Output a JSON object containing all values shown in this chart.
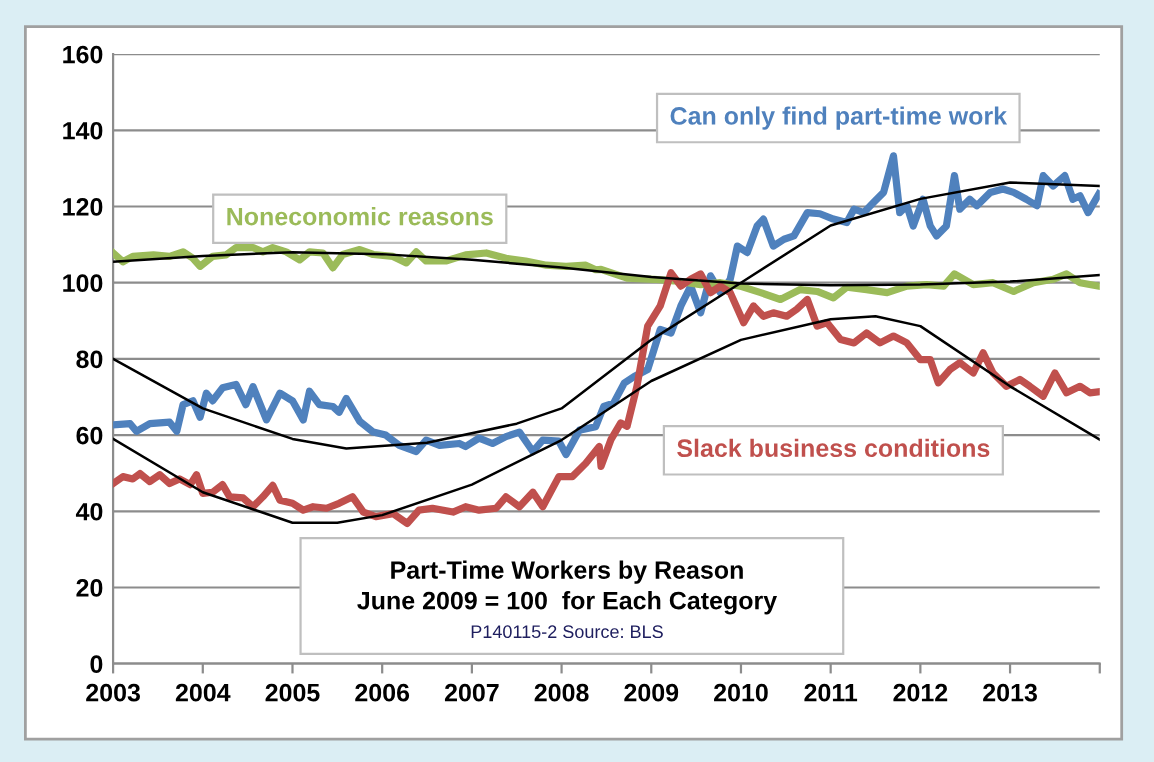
{
  "chart_data": {
    "type": "line",
    "title": "Part-Time Workers by Reason",
    "subtitle": "June 2009 = 100  for Each Category",
    "annotations": [
      "P140115-2 Source: BLS"
    ],
    "xlim": [
      2003,
      2014
    ],
    "xticks": [
      2003,
      2004,
      2005,
      2006,
      2007,
      2008,
      2009,
      2010,
      2011,
      2012,
      2013,
      {
        "value": 2014,
        "label": null
      }
    ],
    "ylim": [
      0,
      160
    ],
    "yticks": [
      0,
      20,
      40,
      60,
      80,
      100,
      120,
      140,
      160
    ],
    "grid": "y",
    "legend": false,
    "series": [
      {
        "name": "Can only find part-time work",
        "color": "#4f81bd",
        "x": [
          2003.0,
          2003.19,
          2003.26,
          2003.41,
          2003.63,
          2003.71,
          2003.78,
          2003.89,
          2003.97,
          2004.04,
          2004.11,
          2004.22,
          2004.37,
          2004.48,
          2004.56,
          2004.71,
          2004.86,
          2005.0,
          2005.12,
          2005.19,
          2005.3,
          2005.45,
          2005.52,
          2005.6,
          2005.75,
          2005.9,
          2006.04,
          2006.19,
          2006.38,
          2006.49,
          2006.64,
          2006.86,
          2006.93,
          2007.08,
          2007.23,
          2007.38,
          2007.53,
          2007.68,
          2007.79,
          2007.97,
          2008.05,
          2008.2,
          2008.38,
          2008.47,
          2008.58,
          2008.7,
          2008.81,
          2008.96,
          2009.1,
          2009.22,
          2009.33,
          2009.44,
          2009.55,
          2009.66,
          2009.77,
          2009.88,
          2009.96,
          2010.07,
          2010.18,
          2010.25,
          2010.36,
          2010.48,
          2010.59,
          2010.74,
          2010.88,
          2011.03,
          2011.18,
          2011.26,
          2011.37,
          2011.48,
          2011.59,
          2011.7,
          2011.77,
          2011.85,
          2011.92,
          2012.03,
          2012.11,
          2012.18,
          2012.29,
          2012.38,
          2012.44,
          2012.55,
          2012.63,
          2012.78,
          2012.92,
          2013.04,
          2013.18,
          2013.3,
          2013.37,
          2013.48,
          2013.61,
          2013.7,
          2013.78,
          2013.87,
          2013.99
        ],
        "values": [
          62.7,
          63,
          61,
          63,
          63.4,
          61,
          68,
          69,
          64.7,
          71,
          69,
          72.4,
          73.3,
          68,
          72.7,
          64,
          71,
          69,
          64,
          71.5,
          68,
          67.5,
          66,
          69.6,
          63.6,
          60.8,
          60,
          57.3,
          55.7,
          58.7,
          57.3,
          57.8,
          57,
          59.2,
          57.8,
          59.6,
          60.8,
          55.7,
          58.7,
          58.4,
          54.9,
          61.3,
          62.2,
          67.5,
          68.4,
          73.7,
          75.4,
          77.2,
          87.7,
          86.8,
          93.9,
          99.1,
          92.1,
          101.8,
          97.4,
          100.9,
          109.6,
          107.9,
          114.9,
          116.7,
          109.6,
          111.4,
          112.3,
          118.4,
          118.1,
          116.7,
          115.8,
          119.3,
          118.4,
          121.1,
          123.7,
          133.3,
          118.4,
          120.2,
          114.9,
          121.9,
          114.9,
          112.3,
          114.9,
          128.1,
          119.3,
          121.9,
          120.2,
          123.7,
          124.6,
          123.7,
          121.9,
          120.2,
          128.1,
          125.4,
          128.1,
          121.9,
          122.8,
          118.4,
          123.3
        ]
      },
      {
        "name": "Noneconomic reasons",
        "color": "#9bbb59",
        "x": [
          2003.0,
          2003.11,
          2003.22,
          2003.45,
          2003.63,
          2003.78,
          2003.89,
          2003.97,
          2004.11,
          2004.26,
          2004.37,
          2004.56,
          2004.67,
          2004.78,
          2004.93,
          2005.08,
          2005.19,
          2005.34,
          2005.45,
          2005.56,
          2005.75,
          2005.9,
          2006.12,
          2006.27,
          2006.38,
          2006.49,
          2006.71,
          2006.93,
          2007.16,
          2007.38,
          2007.6,
          2007.83,
          2008.05,
          2008.27,
          2008.38,
          2008.44,
          2008.73,
          2009.03,
          2009.25,
          2009.55,
          2009.77,
          2009.99,
          2010.22,
          2010.44,
          2010.66,
          2010.85,
          2011.03,
          2011.18,
          2011.4,
          2011.63,
          2011.85,
          2012.07,
          2012.26,
          2012.38,
          2012.59,
          2012.81,
          2013.04,
          2013.26,
          2013.48,
          2013.63,
          2013.78,
          2013.99
        ],
        "values": [
          107.8,
          105.5,
          106.9,
          107.3,
          106.9,
          108.1,
          106.4,
          104.3,
          106.9,
          107.3,
          109.2,
          109.2,
          108.1,
          109.2,
          108.1,
          106,
          108.1,
          107.8,
          103.9,
          107.4,
          108.7,
          107.4,
          106.9,
          105.2,
          108.1,
          105.7,
          105.7,
          107.3,
          107.8,
          106.4,
          105.7,
          104.6,
          104.3,
          104.6,
          103.4,
          103.5,
          101.2,
          100.9,
          100.5,
          99.5,
          100,
          99.1,
          97.4,
          95.6,
          98.2,
          97.7,
          96,
          98.8,
          98.2,
          97.4,
          99.1,
          99.5,
          99.1,
          102.3,
          99.5,
          100,
          97.7,
          100,
          100.9,
          102.3,
          100,
          99.1
        ]
      },
      {
        "name": "Slack business conditions",
        "color": "#c0504d",
        "x": [
          2003.0,
          2003.11,
          2003.22,
          2003.3,
          2003.41,
          2003.52,
          2003.63,
          2003.74,
          2003.86,
          2003.93,
          2004.0,
          2004.11,
          2004.22,
          2004.3,
          2004.45,
          2004.56,
          2004.67,
          2004.78,
          2004.86,
          2005.0,
          2005.12,
          2005.23,
          2005.38,
          2005.52,
          2005.67,
          2005.79,
          2005.93,
          2006.12,
          2006.28,
          2006.41,
          2006.56,
          2006.79,
          2006.93,
          2007.08,
          2007.27,
          2007.38,
          2007.53,
          2007.68,
          2007.79,
          2007.97,
          2008.12,
          2008.27,
          2008.42,
          2008.44,
          2008.55,
          2008.66,
          2008.73,
          2008.84,
          2008.96,
          2009.1,
          2009.22,
          2009.33,
          2009.44,
          2009.55,
          2009.66,
          2009.77,
          2009.88,
          2010.03,
          2010.14,
          2010.25,
          2010.36,
          2010.51,
          2010.62,
          2010.74,
          2010.85,
          2010.96,
          2011.11,
          2011.26,
          2011.4,
          2011.55,
          2011.7,
          2011.85,
          2012.0,
          2012.11,
          2012.2,
          2012.33,
          2012.44,
          2012.59,
          2012.7,
          2012.81,
          2012.96,
          2013.11,
          2013.22,
          2013.37,
          2013.5,
          2013.63,
          2013.78,
          2013.89,
          2013.99
        ],
        "values": [
          47.3,
          49.1,
          48.5,
          49.9,
          47.8,
          49.6,
          47.3,
          48.5,
          47,
          49.6,
          44.7,
          45,
          47,
          43.8,
          43.5,
          41.2,
          43.8,
          46.8,
          42.9,
          42.1,
          40.3,
          41.2,
          40.8,
          42.1,
          43.8,
          39.8,
          38.6,
          39.4,
          36.8,
          40.3,
          40.8,
          39.8,
          41.2,
          40.3,
          40.8,
          43.8,
          41.2,
          45,
          41.2,
          49.1,
          49.1,
          52.6,
          57,
          51.8,
          58.8,
          63.2,
          62.3,
          72.8,
          88.6,
          93.9,
          102.6,
          99.1,
          100.9,
          102.3,
          97.4,
          99.1,
          97.4,
          89.5,
          93.9,
          91.2,
          92.1,
          91.2,
          93,
          95.6,
          88.6,
          89.5,
          85.1,
          84.2,
          86.8,
          84.2,
          86,
          84.2,
          79.8,
          79.8,
          73.7,
          77.2,
          79,
          76.3,
          81.6,
          76.3,
          72.8,
          74.6,
          72.8,
          70.2,
          76.3,
          71.1,
          72.8,
          71.1,
          71.4
        ]
      },
      {
        "type": "line",
        "color": "#000000",
        "x": [
          2003,
          2004,
          2005,
          2006,
          2007,
          2008,
          2009,
          2010,
          2011,
          2012,
          2013,
          2014
        ],
        "values": [
          105.5,
          107,
          108,
          107.5,
          106,
          104,
          101.5,
          99.8,
          99.3,
          99.5,
          100.3,
          102
        ]
      },
      {
        "type": "line",
        "color": "#000000",
        "x": [
          2003,
          2004,
          2005,
          2005.6,
          2006.5,
          2007.5,
          2008,
          2009,
          2010,
          2011,
          2012,
          2013,
          2014
        ],
        "values": [
          80,
          67,
          59,
          56.5,
          58,
          63,
          67,
          85,
          100,
          115,
          122,
          126.3,
          125.4
        ]
      },
      {
        "type": "line",
        "color": "#000000",
        "x": [
          2003,
          2004,
          2005,
          2005.5,
          2006,
          2007,
          2008,
          2009,
          2010,
          2011,
          2011.5,
          2012,
          2013,
          2014
        ],
        "values": [
          59,
          45,
          37,
          37,
          39,
          47,
          58.7,
          74.2,
          85,
          90.4,
          91.2,
          88.6,
          72.8,
          58.8
        ]
      }
    ]
  }
}
